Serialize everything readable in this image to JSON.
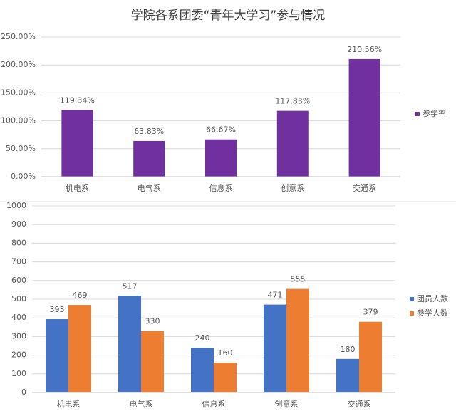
{
  "chart_data": [
    {
      "type": "bar",
      "title": "学院各系团委“青年大学习”参与情况",
      "categories": [
        "机电系",
        "电气系",
        "信息系",
        "创意系",
        "交通系"
      ],
      "series": [
        {
          "name": "参学率",
          "color": "#7030a0",
          "values": [
            119.34,
            63.83,
            66.67,
            117.83,
            210.56
          ],
          "value_labels": [
            "119.34%",
            "63.83%",
            "66.67%",
            "117.83%",
            "210.56%"
          ]
        }
      ],
      "ylim": [
        0,
        250
      ],
      "yticks": [
        {
          "value": 0,
          "label": "0.00%"
        },
        {
          "value": 50,
          "label": "50.00%"
        },
        {
          "value": 100,
          "label": "100.00%"
        },
        {
          "value": 150,
          "label": "150.00%"
        },
        {
          "value": 200,
          "label": "200.00%"
        },
        {
          "value": 250,
          "label": "250.00%"
        }
      ],
      "grid": true,
      "legend": "right"
    },
    {
      "type": "bar",
      "categories": [
        "机电系",
        "电气系",
        "信息系",
        "创意系",
        "交通系"
      ],
      "series": [
        {
          "name": "团员人数",
          "color": "#4472c4",
          "values": [
            393,
            517,
            240,
            471,
            180
          ]
        },
        {
          "name": "参学人数",
          "color": "#ed7d31",
          "values": [
            469,
            330,
            160,
            555,
            379
          ]
        }
      ],
      "ylim": [
        0,
        1000
      ],
      "yticks": [
        0,
        100,
        200,
        300,
        400,
        500,
        600,
        700,
        800,
        900,
        1000
      ],
      "grid": true,
      "legend": "right"
    }
  ]
}
